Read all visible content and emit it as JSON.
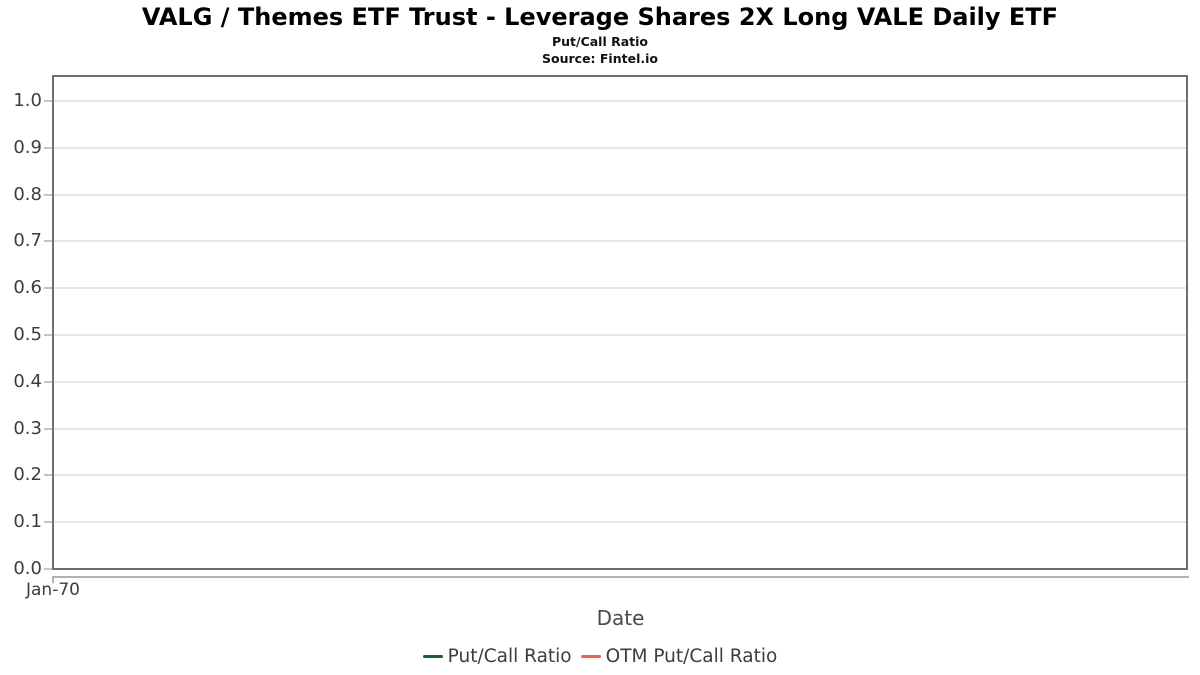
{
  "header": {
    "title": "VALG / Themes ETF Trust - Leverage Shares 2X Long VALE Daily ETF",
    "subtitle": "Put/Call Ratio",
    "source": "Source: Fintel.io"
  },
  "chart_data": {
    "type": "line",
    "title": "VALG / Themes ETF Trust - Leverage Shares 2X Long VALE Daily ETF",
    "subtitle": "Put/Call Ratio",
    "source_note": "Source: Fintel.io",
    "xlabel": "Date",
    "ylabel": "",
    "ylim": [
      0.0,
      1.05
    ],
    "yticks": [
      0.0,
      0.1,
      0.2,
      0.3,
      0.4,
      0.5,
      0.6,
      0.7,
      0.8,
      0.9,
      1.0
    ],
    "ytick_labels": [
      "0.0",
      "0.1",
      "0.2",
      "0.3",
      "0.4",
      "0.5",
      "0.6",
      "0.7",
      "0.8",
      "0.9",
      "1.0"
    ],
    "xtick_labels": [
      "Jan-70"
    ],
    "grid": "horizontal",
    "legend_position": "bottom-center",
    "series": [
      {
        "name": "Put/Call Ratio",
        "color": "#1e5e30",
        "x": [],
        "values": []
      },
      {
        "name": "OTM Put/Call Ratio",
        "color": "#f75d58",
        "x": [],
        "values": []
      }
    ]
  },
  "colors": {
    "background": "#ffffff",
    "plot_border": "#6e6e6e",
    "gridline": "#e8e8ea",
    "tick_mark": "#c4c4c4",
    "axis_line": "#b2b2b2",
    "tick_text": "#3d3d3d",
    "axis_title_text": "#4a4a4a",
    "title_text": "#000000"
  }
}
